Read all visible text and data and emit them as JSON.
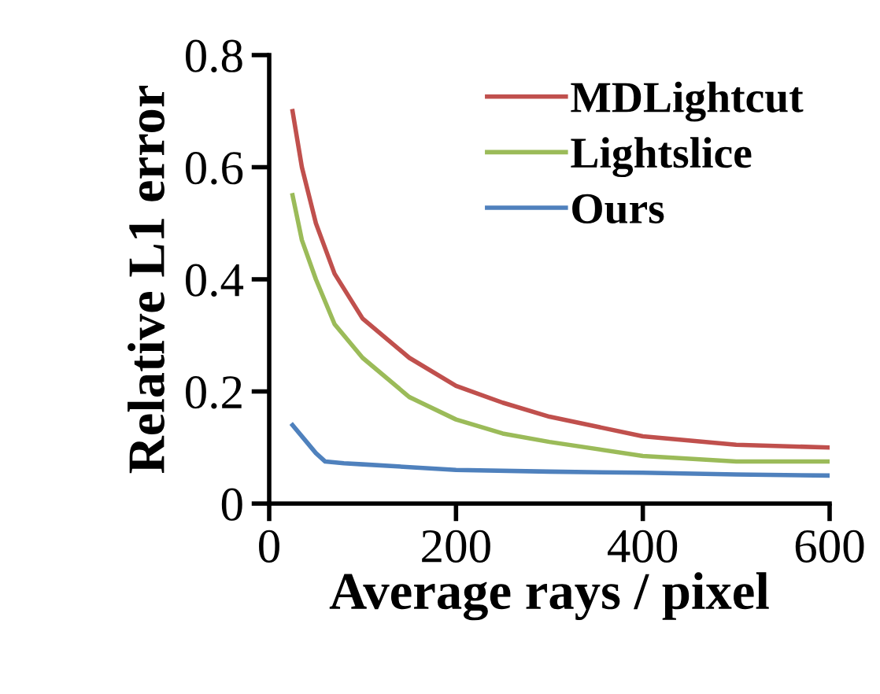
{
  "chart_data": {
    "type": "line",
    "xlabel": "Average rays / pixel",
    "ylabel": "Relative L1 error",
    "xlim": [
      0,
      600
    ],
    "xticks": [
      0,
      200,
      400,
      600
    ],
    "ylim": [
      0,
      0.8
    ],
    "yticks": [
      0,
      0.2,
      0.4,
      0.6,
      0.8
    ],
    "grid": false,
    "legend": "top right",
    "marker": "none",
    "line_style": "solid",
    "series": [
      {
        "name": "MDLightcut",
        "color": "#c0504d",
        "x": [
          25,
          35,
          50,
          70,
          100,
          150,
          200,
          250,
          300,
          400,
          500,
          600
        ],
        "values": [
          0.7,
          0.6,
          0.5,
          0.41,
          0.33,
          0.26,
          0.21,
          0.18,
          0.155,
          0.12,
          0.105,
          0.1
        ]
      },
      {
        "name": "Lightslice",
        "color": "#9bbb59",
        "x": [
          25,
          35,
          50,
          70,
          100,
          150,
          200,
          250,
          300,
          400,
          500,
          600
        ],
        "values": [
          0.55,
          0.47,
          0.4,
          0.32,
          0.26,
          0.19,
          0.15,
          0.125,
          0.11,
          0.085,
          0.075,
          0.075
        ]
      },
      {
        "name": "Ours",
        "color": "#4f81bd",
        "x": [
          25,
          40,
          50,
          60,
          80,
          100,
          200,
          300,
          400,
          500,
          600
        ],
        "values": [
          0.14,
          0.11,
          0.09,
          0.075,
          0.072,
          0.07,
          0.06,
          0.057,
          0.055,
          0.052,
          0.05
        ]
      }
    ]
  }
}
